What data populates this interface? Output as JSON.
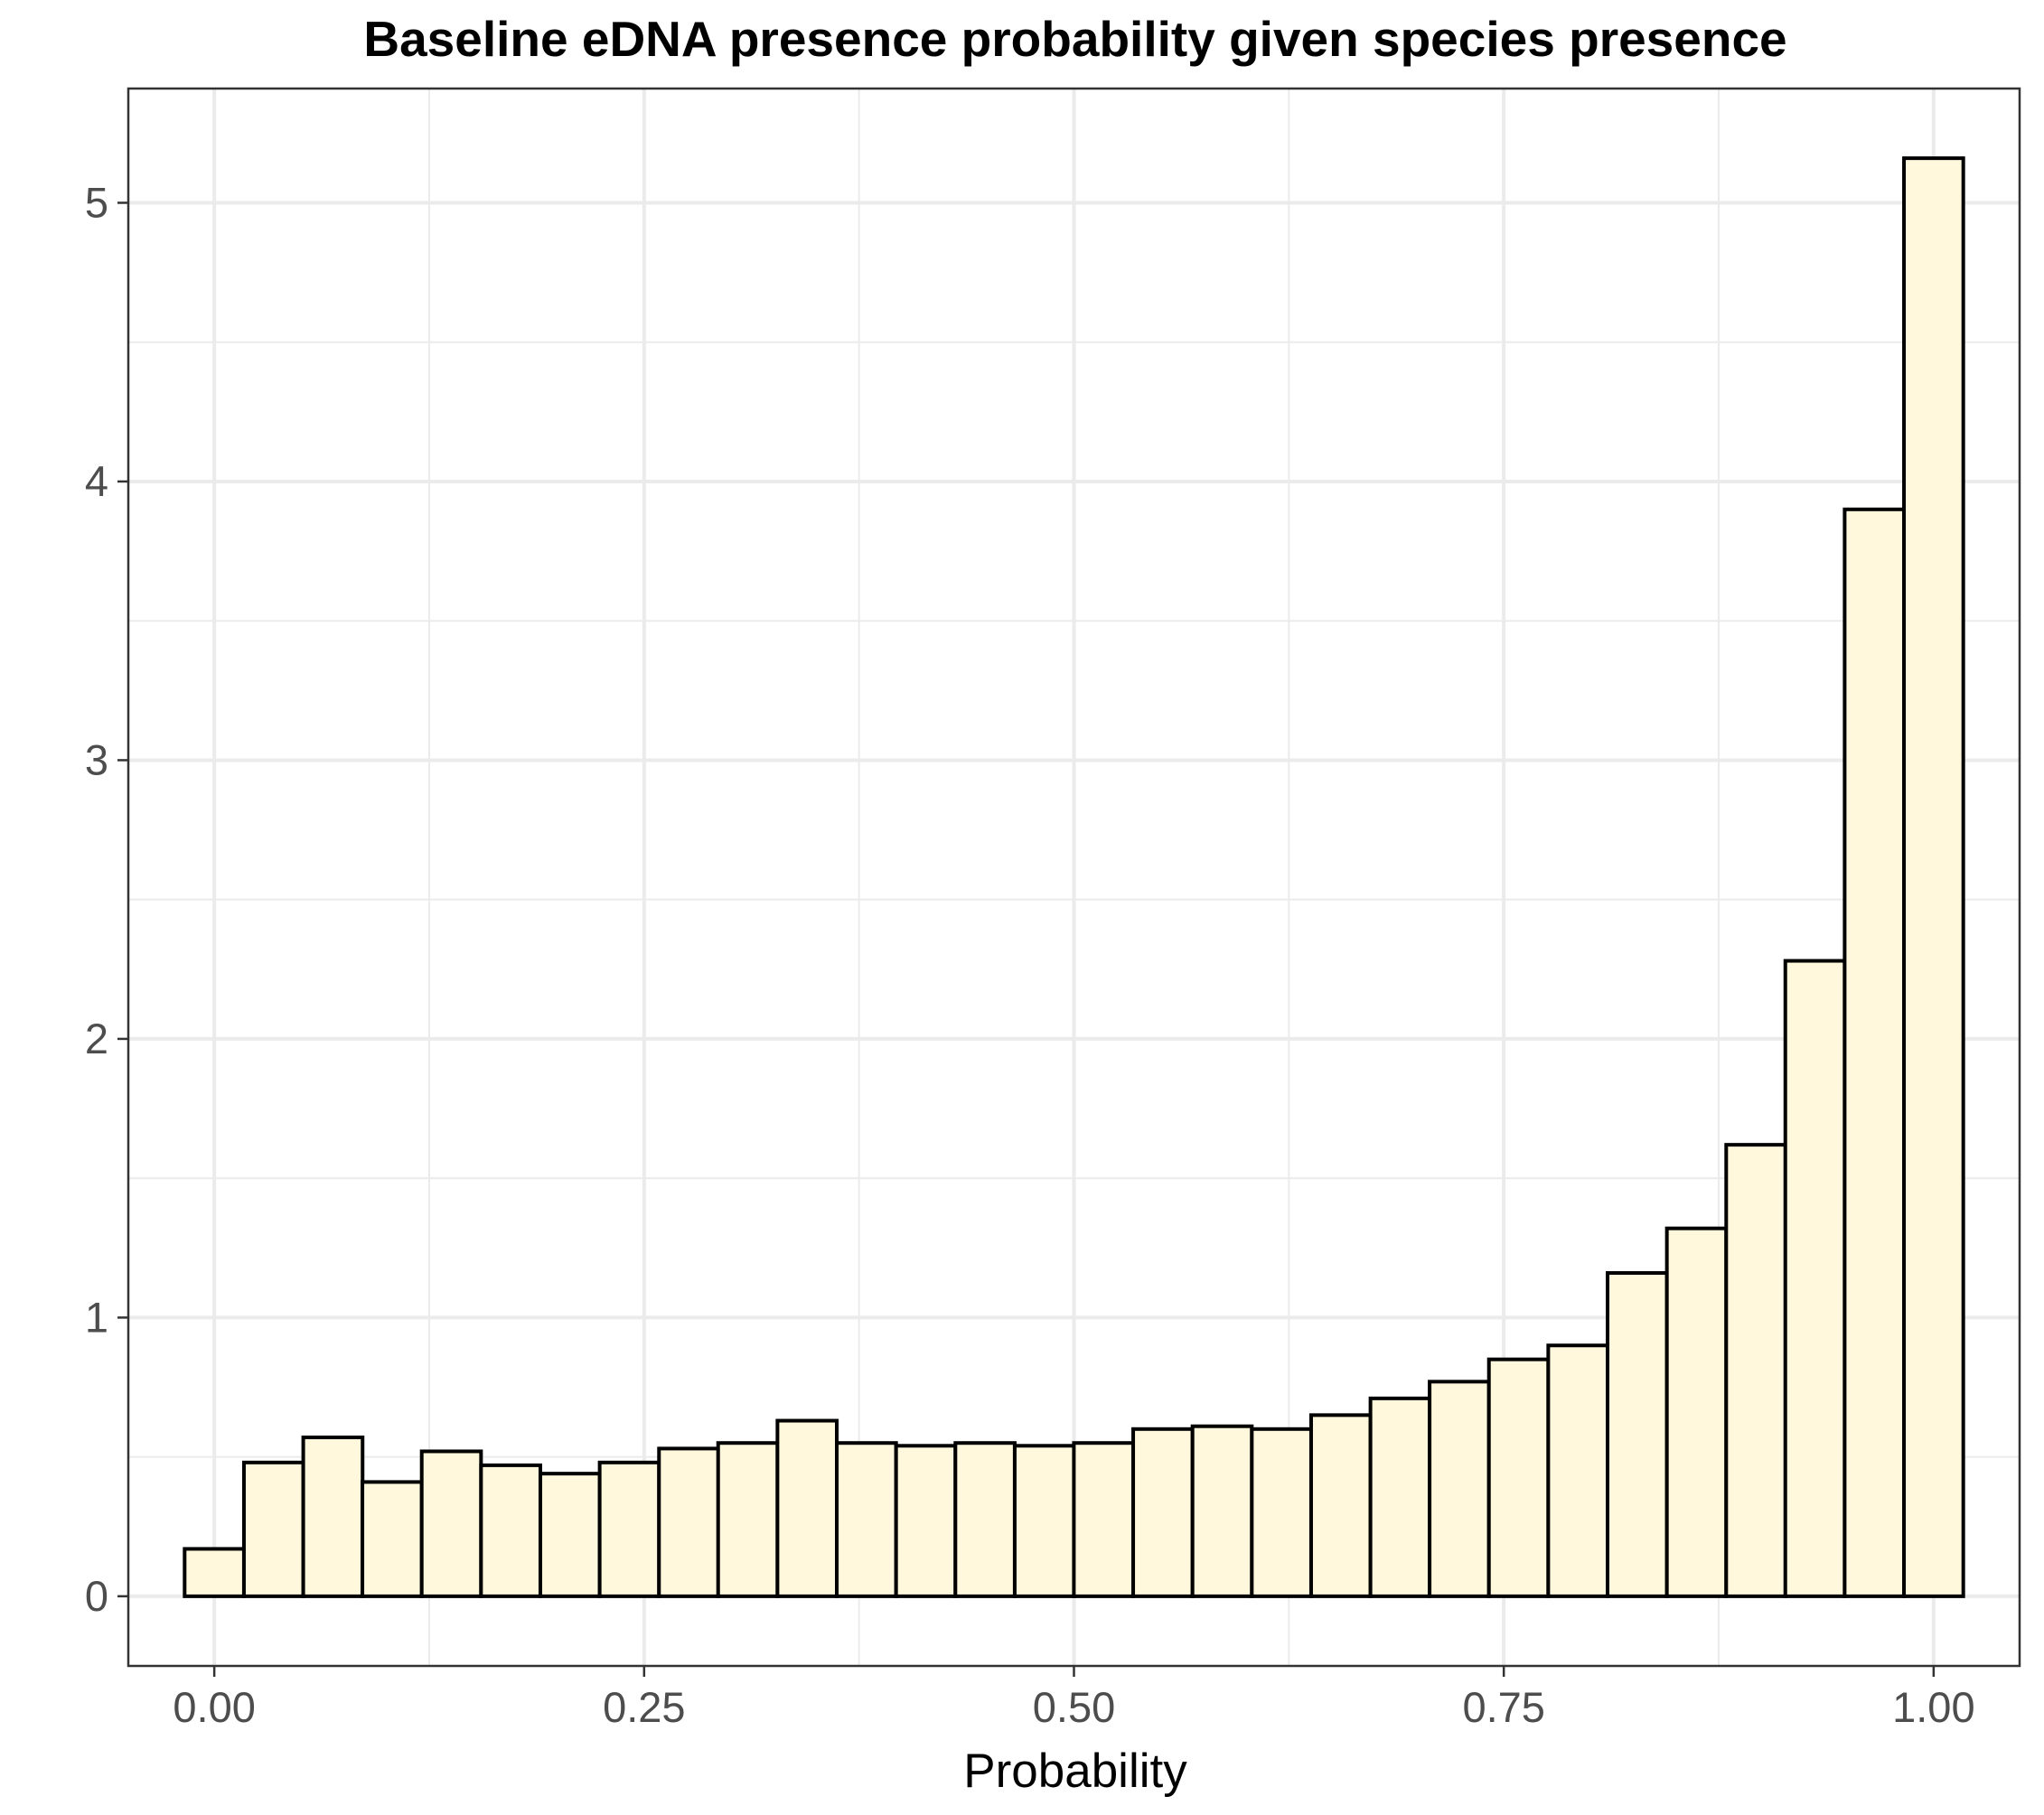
{
  "chart_data": {
    "type": "bar",
    "title": "Baseline eDNA presence probability given species presence",
    "xlabel": "Probability",
    "ylabel": "",
    "xlim": [
      -0.05,
      1.05
    ],
    "ylim": [
      -0.25,
      5.41
    ],
    "x_ticks": [
      0.0,
      0.25,
      0.5,
      0.75,
      1.0
    ],
    "x_tick_labels": [
      "0.00",
      "0.25",
      "0.50",
      "0.75",
      "1.00"
    ],
    "y_ticks": [
      0,
      1,
      2,
      3,
      4,
      5
    ],
    "y_tick_labels": [
      "0",
      "1",
      "2",
      "3",
      "4",
      "5"
    ],
    "grid": true,
    "bin_width": 0.0345,
    "bin_centers": [
      0.0,
      0.0345,
      0.069,
      0.1034,
      0.1379,
      0.1724,
      0.2069,
      0.2414,
      0.2759,
      0.3103,
      0.3448,
      0.3793,
      0.4138,
      0.4483,
      0.4828,
      0.5172,
      0.5517,
      0.5862,
      0.6207,
      0.6552,
      0.6897,
      0.7241,
      0.7586,
      0.7931,
      0.8276,
      0.8621,
      0.8966,
      0.931,
      0.9655,
      1.0
    ],
    "values": [
      0.17,
      0.48,
      0.57,
      0.41,
      0.52,
      0.47,
      0.44,
      0.48,
      0.53,
      0.55,
      0.63,
      0.55,
      0.54,
      0.55,
      0.54,
      0.55,
      0.6,
      0.61,
      0.6,
      0.65,
      0.71,
      0.77,
      0.85,
      0.9,
      1.16,
      1.32,
      1.62,
      2.28,
      3.9,
      5.16
    ],
    "colors": {
      "bar_fill": "#fff8dc",
      "bar_stroke": "#000000",
      "grid": "#ebebeb",
      "panel_border": "#333333",
      "tick_text": "#4d4d4d"
    }
  }
}
